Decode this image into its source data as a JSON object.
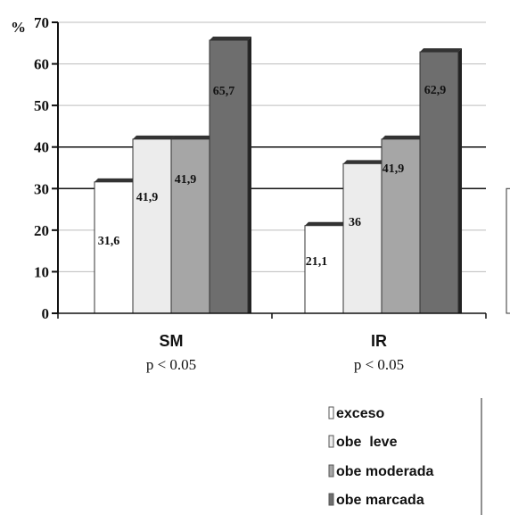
{
  "chart_data": {
    "type": "bar",
    "categories": [
      "SM",
      "IR"
    ],
    "annotations": [
      "p < 0.05",
      "p < 0.05"
    ],
    "series": [
      {
        "name": "exceso",
        "values": [
          31.6,
          21.1
        ],
        "labels": [
          "31,6",
          "21,1"
        ],
        "color": "#ffffff"
      },
      {
        "name": "obe  leve",
        "values": [
          41.9,
          36
        ],
        "labels": [
          "41,9",
          "36"
        ],
        "color": "#ececec"
      },
      {
        "name": "obe moderada",
        "values": [
          41.9,
          41.9
        ],
        "labels": [
          "41,9",
          "41,9"
        ],
        "color": "#a6a6a6"
      },
      {
        "name": "obe marcada",
        "values": [
          65.7,
          62.9
        ],
        "labels": [
          "65,7",
          "62,9"
        ],
        "color": "#6e6e6e"
      }
    ],
    "ylabel": "%",
    "ylim": [
      0,
      70
    ],
    "yticks": [
      "0",
      "10",
      "20",
      "30",
      "40",
      "50",
      "60",
      "70"
    ],
    "grid": true,
    "legend": "bottom-right"
  }
}
